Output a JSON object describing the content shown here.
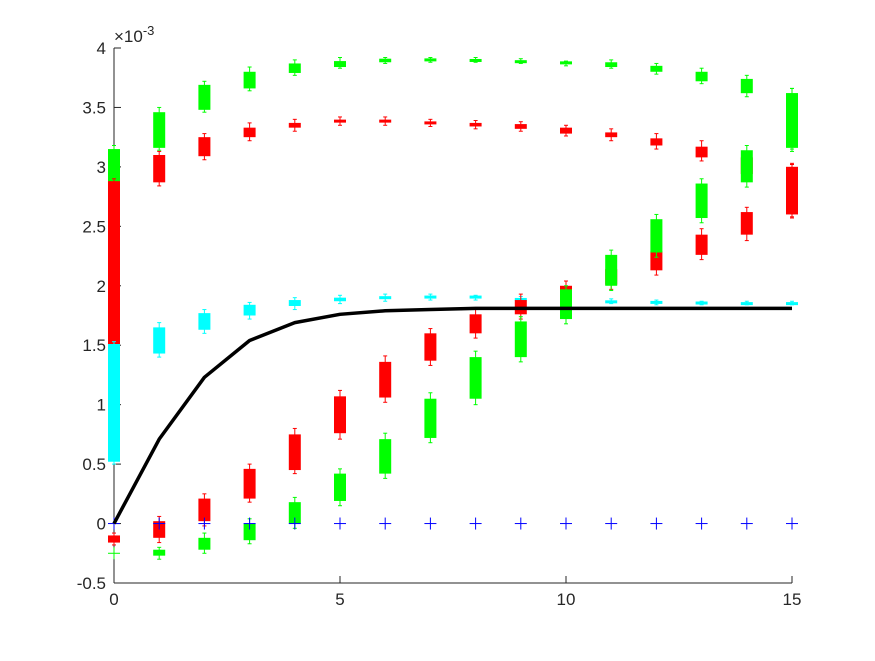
{
  "chart_data": {
    "type": "boxplot",
    "title": "",
    "xlabel": "",
    "ylabel": "",
    "xlim": [
      0,
      15
    ],
    "ylim": [
      -0.0005,
      0.004
    ],
    "x_ticks": [
      0,
      5,
      10,
      15
    ],
    "y_ticks": [
      -0.0005,
      0,
      0.0005,
      0.001,
      0.0015,
      0.002,
      0.0025,
      0.003,
      0.0035,
      0.004
    ],
    "y_tick_labels": [
      "-0.5",
      "0",
      "0.5",
      "1",
      "1.5",
      "2",
      "2.5",
      "3",
      "3.5",
      "4"
    ],
    "y_exponent_label": "×10",
    "y_exponent_power": "-3",
    "grid": false,
    "legend": "none",
    "box_groups": [
      {
        "color": "#00ff00",
        "boxes": [
          {
            "x": 0,
            "q1": 0.00285,
            "q3": 0.00315,
            "whisker_low": 0.00283,
            "whisker_high": 0.00318
          },
          {
            "x": 1,
            "q1": 0.00316,
            "q3": 0.00346,
            "whisker_low": 0.00314,
            "whisker_high": 0.0035
          },
          {
            "x": 2,
            "q1": 0.00348,
            "q3": 0.00369,
            "whisker_low": 0.00346,
            "whisker_high": 0.00372
          },
          {
            "x": 3,
            "q1": 0.00366,
            "q3": 0.0038,
            "whisker_low": 0.00364,
            "whisker_high": 0.00384
          },
          {
            "x": 4,
            "q1": 0.00379,
            "q3": 0.00387,
            "whisker_low": 0.00377,
            "whisker_high": 0.0039
          },
          {
            "x": 5,
            "q1": 0.00384,
            "q3": 0.00389,
            "whisker_low": 0.00383,
            "whisker_high": 0.00392
          },
          {
            "x": 6,
            "q1": 0.00388,
            "q3": 0.00391,
            "whisker_low": 0.00387,
            "whisker_high": 0.00392
          },
          {
            "x": 7,
            "q1": 0.0039,
            "q3": 0.0039,
            "whisker_low": 0.00388,
            "whisker_high": 0.00392
          },
          {
            "x": 8,
            "q1": 0.00389,
            "q3": 0.0039,
            "whisker_low": 0.00388,
            "whisker_high": 0.00392
          },
          {
            "x": 9,
            "q1": 0.00388,
            "q3": 0.00389,
            "whisker_low": 0.00387,
            "whisker_high": 0.00391
          },
          {
            "x": 10,
            "q1": 0.00387,
            "q3": 0.00388,
            "whisker_low": 0.00385,
            "whisker_high": 0.00389
          },
          {
            "x": 11,
            "q1": 0.00384,
            "q3": 0.00388,
            "whisker_low": 0.00383,
            "whisker_high": 0.0039
          },
          {
            "x": 12,
            "q1": 0.0038,
            "q3": 0.00385,
            "whisker_low": 0.00378,
            "whisker_high": 0.00387
          },
          {
            "x": 13,
            "q1": 0.00372,
            "q3": 0.0038,
            "whisker_low": 0.0037,
            "whisker_high": 0.00383
          },
          {
            "x": 14,
            "q1": 0.00362,
            "q3": 0.00374,
            "whisker_low": 0.00359,
            "whisker_high": 0.00377
          },
          {
            "x": 15,
            "q1": 0.00317,
            "q3": 0.00362,
            "whisker_low": 0.00315,
            "whisker_high": 0.00366
          }
        ]
      },
      {
        "color": "#ff0000",
        "boxes": [
          {
            "x": 0,
            "q1": 0.00151,
            "q3": 0.00288,
            "whisker_low": 0.00149,
            "whisker_high": 0.0029
          },
          {
            "x": 1,
            "q1": 0.00287,
            "q3": 0.0031,
            "whisker_low": 0.00284,
            "whisker_high": 0.00313
          },
          {
            "x": 2,
            "q1": 0.00309,
            "q3": 0.00325,
            "whisker_low": 0.00306,
            "whisker_high": 0.00328
          },
          {
            "x": 3,
            "q1": 0.00325,
            "q3": 0.00333,
            "whisker_low": 0.00322,
            "whisker_high": 0.00337
          },
          {
            "x": 4,
            "q1": 0.00333,
            "q3": 0.00337,
            "whisker_low": 0.0033,
            "whisker_high": 0.0034
          },
          {
            "x": 5,
            "q1": 0.00338,
            "q3": 0.00339,
            "whisker_low": 0.00335,
            "whisker_high": 0.00342
          },
          {
            "x": 6,
            "q1": 0.00338,
            "q3": 0.00339,
            "whisker_low": 0.00335,
            "whisker_high": 0.00342
          },
          {
            "x": 7,
            "q1": 0.00336,
            "q3": 0.00338,
            "whisker_low": 0.00334,
            "whisker_high": 0.0034
          },
          {
            "x": 8,
            "q1": 0.00334,
            "q3": 0.00337,
            "whisker_low": 0.00332,
            "whisker_high": 0.00339
          },
          {
            "x": 9,
            "q1": 0.00332,
            "q3": 0.00336,
            "whisker_low": 0.0033,
            "whisker_high": 0.00338
          },
          {
            "x": 10,
            "q1": 0.00328,
            "q3": 0.00333,
            "whisker_low": 0.00326,
            "whisker_high": 0.00335
          },
          {
            "x": 11,
            "q1": 0.00325,
            "q3": 0.00329,
            "whisker_low": 0.00322,
            "whisker_high": 0.00332
          },
          {
            "x": 12,
            "q1": 0.00318,
            "q3": 0.00324,
            "whisker_low": 0.00315,
            "whisker_high": 0.00328
          },
          {
            "x": 13,
            "q1": 0.00308,
            "q3": 0.00317,
            "whisker_low": 0.00305,
            "whisker_high": 0.00322
          },
          {
            "x": 14,
            "q1": 0.00294,
            "q3": 0.00308,
            "whisker_low": 0.0029,
            "whisker_high": 0.00312
          },
          {
            "x": 15,
            "q1": 0.0026,
            "q3": 0.003,
            "whisker_low": 0.00257,
            "whisker_high": 0.00302
          }
        ]
      },
      {
        "color": "#00ffff",
        "boxes": [
          {
            "x": 0,
            "q1": 0.00052,
            "q3": 0.00151,
            "whisker_low": 0.0005,
            "whisker_high": 0.00153
          },
          {
            "x": 1,
            "q1": 0.00143,
            "q3": 0.00165,
            "whisker_low": 0.0014,
            "whisker_high": 0.00169
          },
          {
            "x": 2,
            "q1": 0.00163,
            "q3": 0.00177,
            "whisker_low": 0.0016,
            "whisker_high": 0.0018
          },
          {
            "x": 3,
            "q1": 0.00175,
            "q3": 0.00184,
            "whisker_low": 0.00172,
            "whisker_high": 0.00186
          },
          {
            "x": 4,
            "q1": 0.00183,
            "q3": 0.00188,
            "whisker_low": 0.0018,
            "whisker_high": 0.0019
          },
          {
            "x": 5,
            "q1": 0.00187,
            "q3": 0.0019,
            "whisker_low": 0.00185,
            "whisker_high": 0.00192
          },
          {
            "x": 6,
            "q1": 0.00189,
            "q3": 0.00191,
            "whisker_low": 0.00187,
            "whisker_high": 0.00193
          },
          {
            "x": 7,
            "q1": 0.0019,
            "q3": 0.00191,
            "whisker_low": 0.00188,
            "whisker_high": 0.00193
          },
          {
            "x": 8,
            "q1": 0.0019,
            "q3": 0.00191,
            "whisker_low": 0.00188,
            "whisker_high": 0.00192
          },
          {
            "x": 9,
            "q1": 0.00188,
            "q3": 0.00189,
            "whisker_low": 0.00186,
            "whisker_high": 0.00191
          },
          {
            "x": 10,
            "q1": 0.00187,
            "q3": 0.00188,
            "whisker_low": 0.00185,
            "whisker_high": 0.0019
          },
          {
            "x": 11,
            "q1": 0.00186,
            "q3": 0.00187,
            "whisker_low": 0.00185,
            "whisker_high": 0.00189
          },
          {
            "x": 12,
            "q1": 0.00186,
            "q3": 0.00186,
            "whisker_low": 0.00184,
            "whisker_high": 0.00188
          },
          {
            "x": 13,
            "q1": 0.00185,
            "q3": 0.00186,
            "whisker_low": 0.00184,
            "whisker_high": 0.00187
          },
          {
            "x": 14,
            "q1": 0.00185,
            "q3": 0.00185,
            "whisker_low": 0.00184,
            "whisker_high": 0.00187
          },
          {
            "x": 15,
            "q1": 0.00185,
            "q3": 0.00185,
            "whisker_low": 0.00184,
            "whisker_high": 0.00187
          }
        ]
      },
      {
        "color": "#ff0000",
        "boxes": [
          {
            "x": 0,
            "q1": -0.00016,
            "q3": -0.0001,
            "whisker_low": -0.00018,
            "whisker_high": -8e-05
          },
          {
            "x": 1,
            "q1": -0.00012,
            "q3": 2e-05,
            "whisker_low": -0.00016,
            "whisker_high": 6e-05
          },
          {
            "x": 2,
            "q1": 2e-05,
            "q3": 0.00021,
            "whisker_low": -2e-05,
            "whisker_high": 0.00025
          },
          {
            "x": 3,
            "q1": 0.00021,
            "q3": 0.00046,
            "whisker_low": 0.00018,
            "whisker_high": 0.0005
          },
          {
            "x": 4,
            "q1": 0.00045,
            "q3": 0.00075,
            "whisker_low": 0.00042,
            "whisker_high": 0.0008
          },
          {
            "x": 5,
            "q1": 0.00076,
            "q3": 0.00107,
            "whisker_low": 0.00071,
            "whisker_high": 0.00112
          },
          {
            "x": 6,
            "q1": 0.00106,
            "q3": 0.00136,
            "whisker_low": 0.00102,
            "whisker_high": 0.00141
          },
          {
            "x": 7,
            "q1": 0.00137,
            "q3": 0.0016,
            "whisker_low": 0.00133,
            "whisker_high": 0.00164
          },
          {
            "x": 8,
            "q1": 0.0016,
            "q3": 0.00176,
            "whisker_low": 0.00156,
            "whisker_high": 0.00181
          },
          {
            "x": 9,
            "q1": 0.00176,
            "q3": 0.00188,
            "whisker_low": 0.00172,
            "whisker_high": 0.00193
          },
          {
            "x": 10,
            "q1": 0.0019,
            "q3": 0.002,
            "whisker_low": 0.00187,
            "whisker_high": 0.00204
          },
          {
            "x": 11,
            "q1": 0.00201,
            "q3": 0.00214,
            "whisker_low": 0.00197,
            "whisker_high": 0.00218
          },
          {
            "x": 12,
            "q1": 0.00213,
            "q3": 0.00229,
            "whisker_low": 0.00209,
            "whisker_high": 0.00233
          },
          {
            "x": 13,
            "q1": 0.00226,
            "q3": 0.00243,
            "whisker_low": 0.00222,
            "whisker_high": 0.00248
          },
          {
            "x": 14,
            "q1": 0.00243,
            "q3": 0.00262,
            "whisker_low": 0.00238,
            "whisker_high": 0.00266
          },
          {
            "x": 15,
            "q1": 0.00262,
            "q3": 0.003,
            "whisker_low": 0.00258,
            "whisker_high": 0.00303
          }
        ]
      },
      {
        "color": "#00ff00",
        "boxes": [
          {
            "x": 1,
            "q1": -0.00027,
            "q3": -0.00022,
            "whisker_low": -0.0003,
            "whisker_high": -0.0002
          },
          {
            "x": 2,
            "q1": -0.00022,
            "q3": -0.00012,
            "whisker_low": -0.00025,
            "whisker_high": -8e-05
          },
          {
            "x": 3,
            "q1": -0.00014,
            "q3": 0.0,
            "whisker_low": -0.00017,
            "whisker_high": 4e-05
          },
          {
            "x": 4,
            "q1": 0.0,
            "q3": 0.00018,
            "whisker_low": -4e-05,
            "whisker_high": 0.00022
          },
          {
            "x": 5,
            "q1": 0.00019,
            "q3": 0.00042,
            "whisker_low": 0.00015,
            "whisker_high": 0.00046
          },
          {
            "x": 6,
            "q1": 0.00042,
            "q3": 0.00071,
            "whisker_low": 0.00038,
            "whisker_high": 0.00076
          },
          {
            "x": 7,
            "q1": 0.00072,
            "q3": 0.00105,
            "whisker_low": 0.00068,
            "whisker_high": 0.0011
          },
          {
            "x": 8,
            "q1": 0.00105,
            "q3": 0.0014,
            "whisker_low": 0.001,
            "whisker_high": 0.00145
          },
          {
            "x": 9,
            "q1": 0.0014,
            "q3": 0.0017,
            "whisker_low": 0.00136,
            "whisker_high": 0.00174
          },
          {
            "x": 10,
            "q1": 0.00172,
            "q3": 0.00197,
            "whisker_low": 0.00168,
            "whisker_high": 0.002
          },
          {
            "x": 11,
            "q1": 0.002,
            "q3": 0.00226,
            "whisker_low": 0.00196,
            "whisker_high": 0.0023
          },
          {
            "x": 12,
            "q1": 0.00228,
            "q3": 0.00256,
            "whisker_low": 0.00224,
            "whisker_high": 0.0026
          },
          {
            "x": 13,
            "q1": 0.00257,
            "q3": 0.00286,
            "whisker_low": 0.00253,
            "whisker_high": 0.0029
          },
          {
            "x": 14,
            "q1": 0.00287,
            "q3": 0.00314,
            "whisker_low": 0.00283,
            "whisker_high": 0.00318
          },
          {
            "x": 15,
            "q1": 0.00316,
            "q3": 0.00362,
            "whisker_low": 0.00313,
            "whisker_high": 0.00366
          }
        ]
      }
    ],
    "plus_markers": [
      {
        "color": "#00ff00",
        "x": 0,
        "y": -0.00025
      },
      {
        "color": "#0000ff",
        "x": 0,
        "y": 0.0
      },
      {
        "color": "#0000ff",
        "x": 1,
        "y": 0.0
      },
      {
        "color": "#0000ff",
        "x": 2,
        "y": 0.0
      },
      {
        "color": "#0000ff",
        "x": 3,
        "y": 0.0
      },
      {
        "color": "#0000ff",
        "x": 4,
        "y": 0.0
      },
      {
        "color": "#0000ff",
        "x": 5,
        "y": 0.0
      },
      {
        "color": "#0000ff",
        "x": 6,
        "y": 0.0
      },
      {
        "color": "#0000ff",
        "x": 7,
        "y": 0.0
      },
      {
        "color": "#0000ff",
        "x": 8,
        "y": 0.0
      },
      {
        "color": "#0000ff",
        "x": 9,
        "y": 0.0
      },
      {
        "color": "#0000ff",
        "x": 10,
        "y": 0.0
      },
      {
        "color": "#0000ff",
        "x": 11,
        "y": 0.0
      },
      {
        "color": "#0000ff",
        "x": 12,
        "y": 0.0
      },
      {
        "color": "#0000ff",
        "x": 13,
        "y": 0.0
      },
      {
        "color": "#0000ff",
        "x": 14,
        "y": 0.0
      },
      {
        "color": "#0000ff",
        "x": 15,
        "y": 0.0
      }
    ],
    "line": {
      "color": "#000000",
      "x": [
        0,
        1,
        2,
        3,
        4,
        5,
        6,
        7,
        8,
        9,
        10,
        11,
        12,
        13,
        14,
        15
      ],
      "y": [
        0.0,
        0.00071,
        0.00123,
        0.00154,
        0.00169,
        0.00176,
        0.00179,
        0.0018,
        0.00181,
        0.00181,
        0.00181,
        0.00181,
        0.00181,
        0.00181,
        0.00181,
        0.00181
      ]
    }
  }
}
